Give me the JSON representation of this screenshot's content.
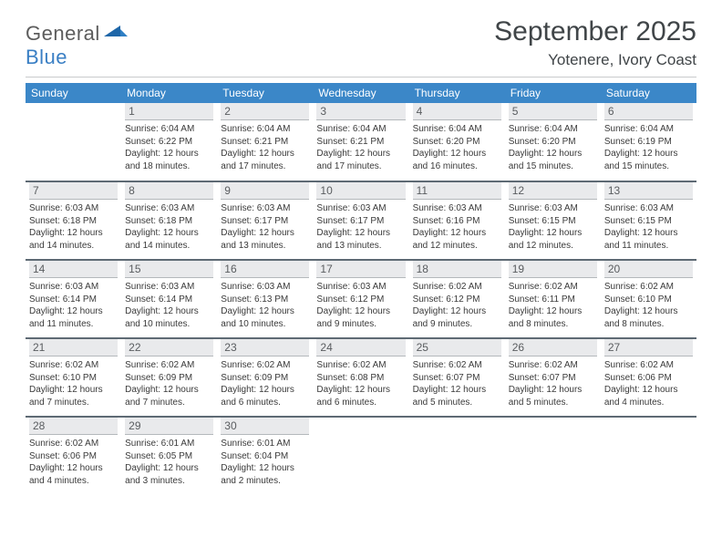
{
  "logo": {
    "general": "General",
    "blue": "Blue"
  },
  "header": {
    "title": "September 2025",
    "location": "Yotenere, Ivory Coast"
  },
  "colors": {
    "header_bg": "#3b87c8",
    "header_text": "#ffffff",
    "daynum_bg": "#e9eaec",
    "rule": "#5e6a74",
    "logo_gray": "#5c5c5c",
    "logo_blue": "#3a7fc4"
  },
  "day_names": [
    "Sunday",
    "Monday",
    "Tuesday",
    "Wednesday",
    "Thursday",
    "Friday",
    "Saturday"
  ],
  "weeks": [
    [
      null,
      {
        "n": "1",
        "sunrise": "Sunrise: 6:04 AM",
        "sunset": "Sunset: 6:22 PM",
        "da": "Daylight: 12 hours",
        "db": "and 18 minutes."
      },
      {
        "n": "2",
        "sunrise": "Sunrise: 6:04 AM",
        "sunset": "Sunset: 6:21 PM",
        "da": "Daylight: 12 hours",
        "db": "and 17 minutes."
      },
      {
        "n": "3",
        "sunrise": "Sunrise: 6:04 AM",
        "sunset": "Sunset: 6:21 PM",
        "da": "Daylight: 12 hours",
        "db": "and 17 minutes."
      },
      {
        "n": "4",
        "sunrise": "Sunrise: 6:04 AM",
        "sunset": "Sunset: 6:20 PM",
        "da": "Daylight: 12 hours",
        "db": "and 16 minutes."
      },
      {
        "n": "5",
        "sunrise": "Sunrise: 6:04 AM",
        "sunset": "Sunset: 6:20 PM",
        "da": "Daylight: 12 hours",
        "db": "and 15 minutes."
      },
      {
        "n": "6",
        "sunrise": "Sunrise: 6:04 AM",
        "sunset": "Sunset: 6:19 PM",
        "da": "Daylight: 12 hours",
        "db": "and 15 minutes."
      }
    ],
    [
      {
        "n": "7",
        "sunrise": "Sunrise: 6:03 AM",
        "sunset": "Sunset: 6:18 PM",
        "da": "Daylight: 12 hours",
        "db": "and 14 minutes."
      },
      {
        "n": "8",
        "sunrise": "Sunrise: 6:03 AM",
        "sunset": "Sunset: 6:18 PM",
        "da": "Daylight: 12 hours",
        "db": "and 14 minutes."
      },
      {
        "n": "9",
        "sunrise": "Sunrise: 6:03 AM",
        "sunset": "Sunset: 6:17 PM",
        "da": "Daylight: 12 hours",
        "db": "and 13 minutes."
      },
      {
        "n": "10",
        "sunrise": "Sunrise: 6:03 AM",
        "sunset": "Sunset: 6:17 PM",
        "da": "Daylight: 12 hours",
        "db": "and 13 minutes."
      },
      {
        "n": "11",
        "sunrise": "Sunrise: 6:03 AM",
        "sunset": "Sunset: 6:16 PM",
        "da": "Daylight: 12 hours",
        "db": "and 12 minutes."
      },
      {
        "n": "12",
        "sunrise": "Sunrise: 6:03 AM",
        "sunset": "Sunset: 6:15 PM",
        "da": "Daylight: 12 hours",
        "db": "and 12 minutes."
      },
      {
        "n": "13",
        "sunrise": "Sunrise: 6:03 AM",
        "sunset": "Sunset: 6:15 PM",
        "da": "Daylight: 12 hours",
        "db": "and 11 minutes."
      }
    ],
    [
      {
        "n": "14",
        "sunrise": "Sunrise: 6:03 AM",
        "sunset": "Sunset: 6:14 PM",
        "da": "Daylight: 12 hours",
        "db": "and 11 minutes."
      },
      {
        "n": "15",
        "sunrise": "Sunrise: 6:03 AM",
        "sunset": "Sunset: 6:14 PM",
        "da": "Daylight: 12 hours",
        "db": "and 10 minutes."
      },
      {
        "n": "16",
        "sunrise": "Sunrise: 6:03 AM",
        "sunset": "Sunset: 6:13 PM",
        "da": "Daylight: 12 hours",
        "db": "and 10 minutes."
      },
      {
        "n": "17",
        "sunrise": "Sunrise: 6:03 AM",
        "sunset": "Sunset: 6:12 PM",
        "da": "Daylight: 12 hours",
        "db": "and 9 minutes."
      },
      {
        "n": "18",
        "sunrise": "Sunrise: 6:02 AM",
        "sunset": "Sunset: 6:12 PM",
        "da": "Daylight: 12 hours",
        "db": "and 9 minutes."
      },
      {
        "n": "19",
        "sunrise": "Sunrise: 6:02 AM",
        "sunset": "Sunset: 6:11 PM",
        "da": "Daylight: 12 hours",
        "db": "and 8 minutes."
      },
      {
        "n": "20",
        "sunrise": "Sunrise: 6:02 AM",
        "sunset": "Sunset: 6:10 PM",
        "da": "Daylight: 12 hours",
        "db": "and 8 minutes."
      }
    ],
    [
      {
        "n": "21",
        "sunrise": "Sunrise: 6:02 AM",
        "sunset": "Sunset: 6:10 PM",
        "da": "Daylight: 12 hours",
        "db": "and 7 minutes."
      },
      {
        "n": "22",
        "sunrise": "Sunrise: 6:02 AM",
        "sunset": "Sunset: 6:09 PM",
        "da": "Daylight: 12 hours",
        "db": "and 7 minutes."
      },
      {
        "n": "23",
        "sunrise": "Sunrise: 6:02 AM",
        "sunset": "Sunset: 6:09 PM",
        "da": "Daylight: 12 hours",
        "db": "and 6 minutes."
      },
      {
        "n": "24",
        "sunrise": "Sunrise: 6:02 AM",
        "sunset": "Sunset: 6:08 PM",
        "da": "Daylight: 12 hours",
        "db": "and 6 minutes."
      },
      {
        "n": "25",
        "sunrise": "Sunrise: 6:02 AM",
        "sunset": "Sunset: 6:07 PM",
        "da": "Daylight: 12 hours",
        "db": "and 5 minutes."
      },
      {
        "n": "26",
        "sunrise": "Sunrise: 6:02 AM",
        "sunset": "Sunset: 6:07 PM",
        "da": "Daylight: 12 hours",
        "db": "and 5 minutes."
      },
      {
        "n": "27",
        "sunrise": "Sunrise: 6:02 AM",
        "sunset": "Sunset: 6:06 PM",
        "da": "Daylight: 12 hours",
        "db": "and 4 minutes."
      }
    ],
    [
      {
        "n": "28",
        "sunrise": "Sunrise: 6:02 AM",
        "sunset": "Sunset: 6:06 PM",
        "da": "Daylight: 12 hours",
        "db": "and 4 minutes."
      },
      {
        "n": "29",
        "sunrise": "Sunrise: 6:01 AM",
        "sunset": "Sunset: 6:05 PM",
        "da": "Daylight: 12 hours",
        "db": "and 3 minutes."
      },
      {
        "n": "30",
        "sunrise": "Sunrise: 6:01 AM",
        "sunset": "Sunset: 6:04 PM",
        "da": "Daylight: 12 hours",
        "db": "and 2 minutes."
      },
      null,
      null,
      null,
      null
    ]
  ]
}
